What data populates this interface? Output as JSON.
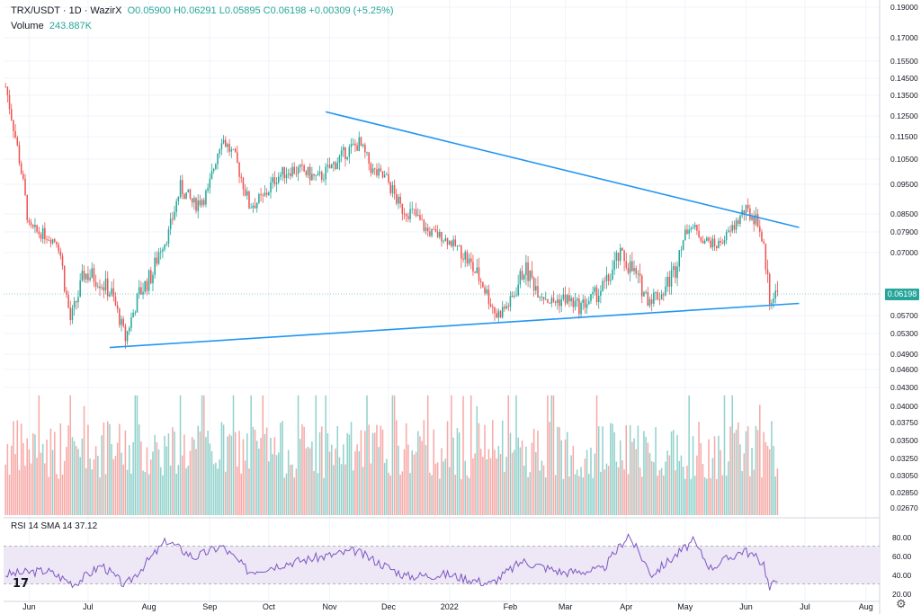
{
  "header": {
    "symbol": "TRX/USDT · 1D · WazirX",
    "ohlc": "O0.05900 H0.06291 L0.05895 C0.06198 +0.00309 (+5.25%)",
    "volume_label": "Volume",
    "volume_value": "243.887K"
  },
  "rsi_header": "RSI 14 SMA 14   37.12",
  "last_price_tag": "0.06198",
  "colors": {
    "up": "#26a69a",
    "down": "#ef5350",
    "trendline": "#2196f3",
    "rsi_line": "#7e57c2",
    "rsi_band": "#ede7f6"
  },
  "chart_data": {
    "type": "candlestick",
    "price_axis_ticks": [
      "0.19000",
      "0.17000",
      "0.15500",
      "0.14500",
      "0.13500",
      "0.12500",
      "0.11500",
      "0.10500",
      "0.09500",
      "0.08500",
      "0.07900",
      "0.07000",
      "0.06198",
      "0.05700",
      "0.05300",
      "0.04900",
      "0.04600",
      "0.04300",
      "0.04000",
      "0.03750",
      "0.03500",
      "0.03250",
      "0.03050",
      "0.02850",
      "0.02670"
    ],
    "rsi_axis_ticks": [
      "80.00",
      "60.00",
      "40.00",
      "20.00"
    ],
    "time_ticks": [
      "Jun",
      "Jul",
      "Aug",
      "Sep",
      "Oct",
      "Nov",
      "Dec",
      "2022",
      "Feb",
      "Mar",
      "Apr",
      "May",
      "Jun",
      "Jul",
      "Aug"
    ],
    "close_path": [
      [
        "2021-05-20",
        0.14
      ],
      [
        "2021-05-25",
        0.115
      ],
      [
        "2021-06-01",
        0.08
      ],
      [
        "2021-06-08",
        0.078
      ],
      [
        "2021-06-15",
        0.075
      ],
      [
        "2021-06-22",
        0.056
      ],
      [
        "2021-06-29",
        0.066
      ],
      [
        "2021-07-06",
        0.065
      ],
      [
        "2021-07-13",
        0.062
      ],
      [
        "2021-07-20",
        0.052
      ],
      [
        "2021-07-27",
        0.062
      ],
      [
        "2021-08-03",
        0.066
      ],
      [
        "2021-08-10",
        0.076
      ],
      [
        "2021-08-17",
        0.094
      ],
      [
        "2021-08-24",
        0.088
      ],
      [
        "2021-08-31",
        0.092
      ],
      [
        "2021-09-07",
        0.115
      ],
      [
        "2021-09-14",
        0.105
      ],
      [
        "2021-09-21",
        0.088
      ],
      [
        "2021-09-28",
        0.09
      ],
      [
        "2021-10-05",
        0.098
      ],
      [
        "2021-10-12",
        0.101
      ],
      [
        "2021-10-19",
        0.1
      ],
      [
        "2021-10-26",
        0.097
      ],
      [
        "2021-11-02",
        0.102
      ],
      [
        "2021-11-09",
        0.108
      ],
      [
        "2021-11-16",
        0.112
      ],
      [
        "2021-11-23",
        0.1
      ],
      [
        "2021-11-30",
        0.097
      ],
      [
        "2021-12-07",
        0.087
      ],
      [
        "2021-12-14",
        0.085
      ],
      [
        "2021-12-21",
        0.079
      ],
      [
        "2021-12-28",
        0.077
      ],
      [
        "2022-01-04",
        0.073
      ],
      [
        "2022-01-11",
        0.068
      ],
      [
        "2022-01-18",
        0.064
      ],
      [
        "2022-01-25",
        0.057
      ],
      [
        "2022-02-01",
        0.06
      ],
      [
        "2022-02-08",
        0.067
      ],
      [
        "2022-02-15",
        0.063
      ],
      [
        "2022-02-22",
        0.06
      ],
      [
        "2022-03-01",
        0.061
      ],
      [
        "2022-03-08",
        0.059
      ],
      [
        "2022-03-15",
        0.061
      ],
      [
        "2022-03-22",
        0.064
      ],
      [
        "2022-03-29",
        0.07
      ],
      [
        "2022-04-05",
        0.066
      ],
      [
        "2022-04-12",
        0.061
      ],
      [
        "2022-04-19",
        0.062
      ],
      [
        "2022-04-26",
        0.067
      ],
      [
        "2022-05-03",
        0.082
      ],
      [
        "2022-05-10",
        0.076
      ],
      [
        "2022-05-17",
        0.073
      ],
      [
        "2022-05-24",
        0.079
      ],
      [
        "2022-05-31",
        0.086
      ],
      [
        "2022-06-07",
        0.083
      ],
      [
        "2022-06-13",
        0.061
      ],
      [
        "2022-06-17",
        0.062
      ]
    ],
    "trendlines": [
      {
        "name": "upper",
        "from": [
          "2021-10-30",
          0.127
        ],
        "to": [
          "2022-06-28",
          0.0805
        ]
      },
      {
        "name": "lower",
        "from": [
          "2021-07-12",
          0.0503
        ],
        "to": [
          "2022-06-28",
          0.0598
        ]
      }
    ],
    "rsi_path": [
      [
        "2021-05-20",
        40
      ],
      [
        "2021-06-10",
        44
      ],
      [
        "2021-06-24",
        30
      ],
      [
        "2021-07-08",
        50
      ],
      [
        "2021-07-20",
        28
      ],
      [
        "2021-08-10",
        76
      ],
      [
        "2021-08-24",
        58
      ],
      [
        "2021-09-07",
        70
      ],
      [
        "2021-09-21",
        43
      ],
      [
        "2021-10-10",
        52
      ],
      [
        "2021-11-14",
        65
      ],
      [
        "2021-12-10",
        38
      ],
      [
        "2021-12-31",
        40
      ],
      [
        "2022-01-22",
        30
      ],
      [
        "2022-02-07",
        54
      ],
      [
        "2022-02-28",
        42
      ],
      [
        "2022-03-20",
        45
      ],
      [
        "2022-04-02",
        82
      ],
      [
        "2022-04-14",
        40
      ],
      [
        "2022-05-05",
        75
      ],
      [
        "2022-05-14",
        47
      ],
      [
        "2022-05-31",
        66
      ],
      [
        "2022-06-10",
        52
      ],
      [
        "2022-06-13",
        24
      ],
      [
        "2022-06-17",
        37
      ]
    ]
  }
}
